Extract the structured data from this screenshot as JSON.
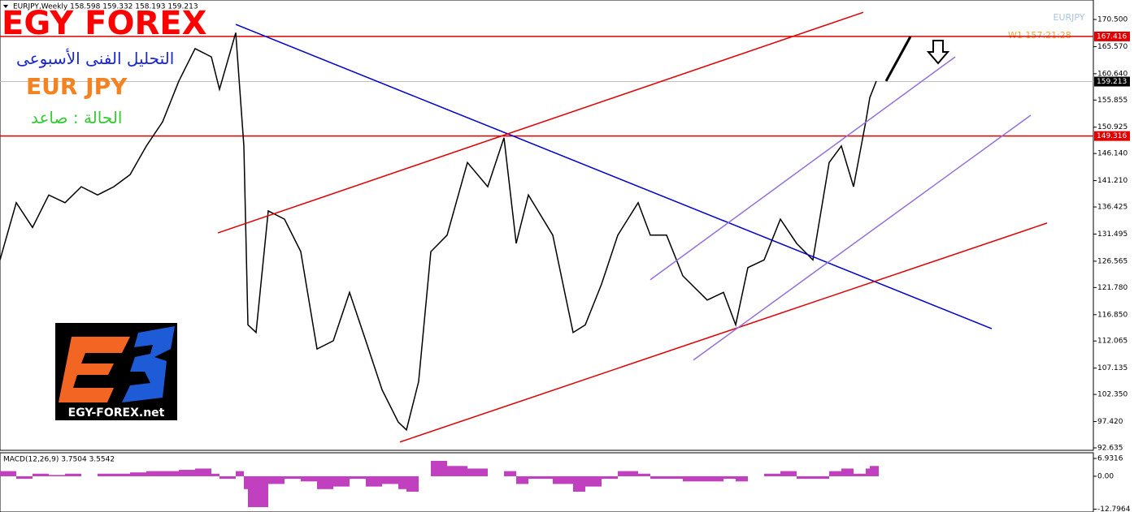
{
  "header": "EURJPY,Weekly  158.598 159.332 158.193 159.213",
  "brand": "EGY FOREX",
  "subtitle_ar": "التحليل الفنى الأسبوعى",
  "pair": "EUR JPY",
  "status_ar": "الحالة : صاعد",
  "logo_text": "EGY-FOREX.net",
  "timer": "W1   157:21:28",
  "chart_data": [
    {
      "type": "line",
      "x": [
        0,
        10,
        20,
        30,
        40,
        50,
        60,
        70,
        80,
        90,
        100,
        110,
        120,
        130,
        135,
        145,
        150,
        152.5,
        157.5,
        165,
        175,
        185,
        195,
        205,
        215,
        225,
        235,
        245,
        250,
        257.5,
        265,
        275,
        287.5,
        300,
        310,
        317.5,
        325,
        340,
        352.5,
        360,
        370,
        380,
        392.5,
        400,
        410,
        420,
        435,
        445,
        452.5,
        460,
        470,
        480,
        490,
        500,
        510,
        517.5,
        525,
        532.5,
        535,
        539
      ],
      "series": [
        {
          "name": "EURJPY",
          "color": "#000000",
          "values": [
            126.8,
            137.2,
            132.7,
            138.6,
            137.2,
            140.1,
            138.6,
            140.1,
            142.3,
            147.5,
            151.9,
            159.3,
            165.2,
            163.7,
            157.8,
            168.1,
            147.5,
            115.0,
            113.6,
            135.7,
            134.2,
            128.3,
            110.6,
            112.1,
            120.9,
            112.1,
            103.2,
            97.3,
            95.9,
            104.7,
            128.3,
            131.3,
            144.5,
            140.1,
            149.0,
            129.8,
            138.6,
            131.3,
            113.6,
            115.0,
            122.4,
            131.3,
            137.2,
            131.3,
            131.3,
            123.9,
            119.5,
            120.9,
            115.0,
            125.4,
            126.8,
            134.2,
            129.8,
            126.8,
            144.5,
            147.5,
            140.1,
            151.9,
            156.3,
            159.3
          ]
        }
      ],
      "lines": [
        {
          "color": "#0000cc",
          "x": [
            145,
            610
          ],
          "values": [
            169.6,
            114.3
          ]
        },
        {
          "color": "#e00000",
          "x": [
            134,
            531
          ],
          "values": [
            131.7,
            171.8
          ]
        },
        {
          "color": "#e00000",
          "x": [
            246,
            644
          ],
          "values": [
            93.7,
            133.5
          ]
        },
        {
          "color": "#9370db",
          "x": [
            400,
            587.5
          ],
          "values": [
            123.2,
            163.7
          ]
        },
        {
          "color": "#9370db",
          "x": [
            426.5,
            634
          ],
          "values": [
            108.6,
            153.1
          ]
        },
        {
          "color": "#000000",
          "x": [
            545,
            560
          ],
          "values": [
            159.3,
            167.4
          ]
        }
      ],
      "hlines": [
        {
          "value": 167.416,
          "label": "167.416",
          "color": "#e00000"
        },
        {
          "value": 149.316,
          "label": "149.316",
          "color": "#e00000"
        },
        {
          "value": 159.213,
          "label": "159.213",
          "color": "#c0c0c0"
        }
      ],
      "xlim": [
        0,
        672.5
      ],
      "ylim": [
        92.19,
        174.04
      ],
      "yticks": [
        {
          "value": 170.5,
          "label": "170.500"
        },
        {
          "value": 165.57,
          "label": "165.570"
        },
        {
          "value": 160.64,
          "label": "160.640"
        },
        {
          "value": 155.855,
          "label": "155.855"
        },
        {
          "value": 150.925,
          "label": "150.925"
        },
        {
          "value": 146.14,
          "label": "146.140"
        },
        {
          "value": 141.21,
          "label": "141.210"
        },
        {
          "value": 136.425,
          "label": "136.425"
        },
        {
          "value": 131.495,
          "label": "131.495"
        },
        {
          "value": 126.565,
          "label": "126.565"
        },
        {
          "value": 121.78,
          "label": "121.780"
        },
        {
          "value": 116.85,
          "label": "116.850"
        },
        {
          "value": 112.065,
          "label": "112.065"
        },
        {
          "value": 107.135,
          "label": "107.135"
        },
        {
          "value": 102.35,
          "label": "102.350"
        },
        {
          "value": 97.42,
          "label": "97.420"
        },
        {
          "value": 92.635,
          "label": "92.635"
        }
      ]
    },
    {
      "type": "bar",
      "title": "MACD(12,26,9) 3.7504 3.5542",
      "color": "#c040c0",
      "x": [
        0,
        10,
        20,
        30,
        40,
        50,
        60,
        70,
        80,
        90,
        100,
        110,
        120,
        130,
        135,
        145,
        150,
        152.5,
        157.5,
        165,
        175,
        185,
        195,
        205,
        215,
        225,
        235,
        245,
        250,
        257.5,
        265,
        275,
        287.5,
        300,
        310,
        317.5,
        325,
        340,
        352.5,
        360,
        370,
        380,
        392.5,
        400,
        410,
        420,
        435,
        445,
        452.5,
        460,
        470,
        480,
        490,
        500,
        510,
        517.5,
        525,
        532.5,
        535,
        539
      ],
      "values": [
        2,
        -1,
        1,
        0.5,
        1,
        0,
        1,
        1,
        1.5,
        2,
        2,
        2.5,
        3,
        1,
        -1,
        2,
        -5,
        -12,
        -12,
        -3,
        -1,
        -2,
        -5,
        -4,
        -1,
        -4,
        -3,
        -5,
        -6,
        0,
        6,
        4,
        3,
        0,
        2,
        -3,
        -1,
        -3,
        -6,
        -4,
        -1,
        2,
        1,
        -1,
        -1,
        -2,
        -2,
        -1,
        -2,
        0,
        1,
        2,
        -1,
        -1,
        2,
        3,
        1,
        3,
        4,
        4
      ],
      "xlim": [
        0,
        672.5
      ],
      "ylim": [
        -13.9,
        9.14
      ],
      "yticks": [
        {
          "value": 6.9316,
          "label": "6.9316"
        },
        {
          "value": 0,
          "label": "0.00"
        },
        {
          "value": -12.7964,
          "label": "-12.7964"
        }
      ]
    }
  ]
}
